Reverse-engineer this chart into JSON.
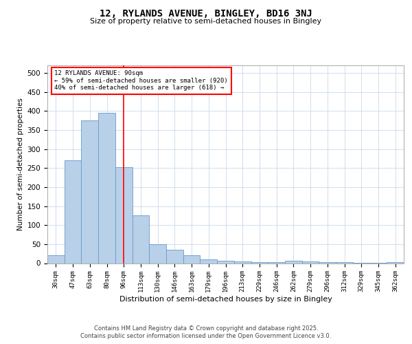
{
  "title1": "12, RYLANDS AVENUE, BINGLEY, BD16 3NJ",
  "title2": "Size of property relative to semi-detached houses in Bingley",
  "xlabel": "Distribution of semi-detached houses by size in Bingley",
  "ylabel": "Number of semi-detached properties",
  "categories": [
    "30sqm",
    "47sqm",
    "63sqm",
    "80sqm",
    "96sqm",
    "113sqm",
    "130sqm",
    "146sqm",
    "163sqm",
    "179sqm",
    "196sqm",
    "213sqm",
    "229sqm",
    "246sqm",
    "262sqm",
    "279sqm",
    "296sqm",
    "312sqm",
    "329sqm",
    "345sqm",
    "362sqm"
  ],
  "values": [
    20,
    270,
    375,
    395,
    252,
    125,
    50,
    35,
    20,
    10,
    6,
    4,
    3,
    2,
    6,
    5,
    3,
    2,
    1,
    1,
    3
  ],
  "bar_color": "#b8d0e8",
  "bar_edge_color": "#6699cc",
  "red_line_index": 4.0,
  "annotation_line1": "12 RYLANDS AVENUE: 90sqm",
  "annotation_line2": "← 59% of semi-detached houses are smaller (920)",
  "annotation_line3": "40% of semi-detached houses are larger (618) →",
  "footer1": "Contains HM Land Registry data © Crown copyright and database right 2025.",
  "footer2": "Contains public sector information licensed under the Open Government Licence v3.0.",
  "ylim": [
    0,
    520
  ],
  "yticks": [
    0,
    50,
    100,
    150,
    200,
    250,
    300,
    350,
    400,
    450,
    500
  ]
}
